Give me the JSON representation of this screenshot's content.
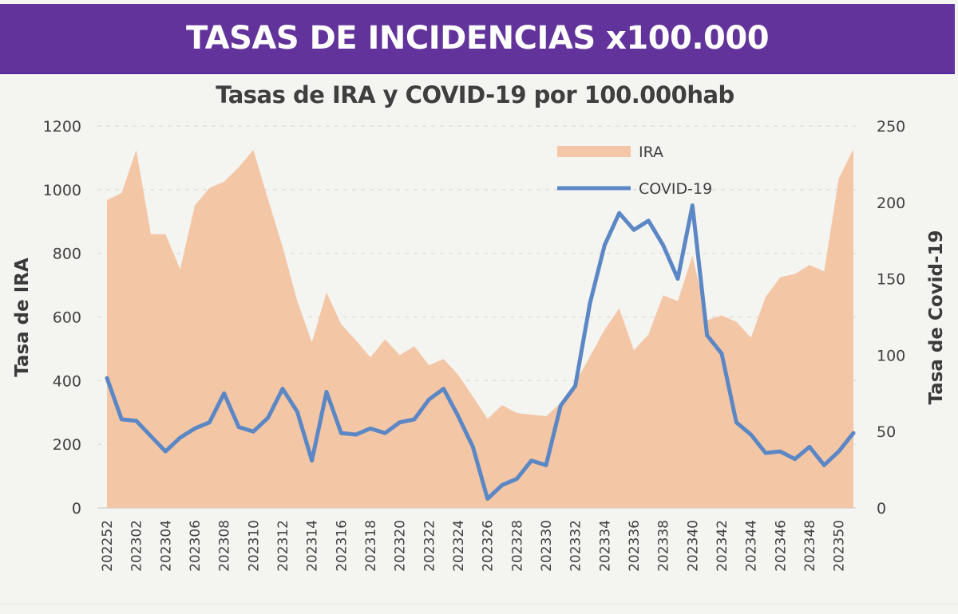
{
  "banner": {
    "title": "TASAS DE INCIDENCIAS x100.000"
  },
  "colors": {
    "banner": "#62339a",
    "ira_fill": "#f3c6a6",
    "covid_line": "#5b87c5",
    "text": "#404040",
    "grid": "#d9d9d9"
  },
  "chart_data": {
    "type": "area+line",
    "title": "Tasas de IRA y COVID-19 por 100.000hab",
    "xlabel": "",
    "ylabel_left": "Tasa de IRA",
    "ylabel_right": "Tasa de Covid-19",
    "ylim_left": [
      0,
      1200
    ],
    "ylim_right": [
      0,
      250
    ],
    "yticks_left": [
      0,
      200,
      400,
      600,
      800,
      1000,
      1200
    ],
    "yticks_right": [
      0,
      50,
      100,
      150,
      200,
      250
    ],
    "grid": true,
    "legend_position": "top-right-center",
    "x": [
      "202252",
      "202301",
      "202302",
      "202303",
      "202304",
      "202305",
      "202306",
      "202307",
      "202308",
      "202309",
      "202310",
      "202311",
      "202312",
      "202313",
      "202314",
      "202315",
      "202316",
      "202317",
      "202318",
      "202319",
      "202320",
      "202321",
      "202322",
      "202323",
      "202324",
      "202325",
      "202326",
      "202327",
      "202328",
      "202329",
      "202330",
      "202331",
      "202332",
      "202333",
      "202334",
      "202335",
      "202336",
      "202337",
      "202338",
      "202339",
      "202340",
      "202341",
      "202342",
      "202343",
      "202344",
      "202345",
      "202346",
      "202347",
      "202348",
      "202349",
      "202350",
      "202351"
    ],
    "xtick_labels": [
      "202252",
      "202302",
      "202304",
      "202306",
      "202308",
      "202310",
      "202312",
      "202314",
      "202316",
      "202318",
      "202320",
      "202322",
      "202324",
      "202326",
      "202328",
      "202330",
      "202332",
      "202334",
      "202336",
      "202338",
      "202340",
      "202342",
      "202344",
      "202346",
      "202348",
      "202350"
    ],
    "series": [
      {
        "name": "IRA",
        "type": "area",
        "axis": "left",
        "values": [
          967,
          990,
          1125,
          860,
          860,
          750,
          950,
          1005,
          1025,
          1070,
          1125,
          970,
          820,
          650,
          520,
          677,
          577,
          527,
          473,
          530,
          480,
          508,
          448,
          468,
          418,
          350,
          280,
          323,
          298,
          293,
          288,
          330,
          393,
          476,
          560,
          627,
          495,
          545,
          668,
          650,
          793,
          590,
          605,
          585,
          535,
          663,
          725,
          735,
          763,
          743,
          1035,
          1128
        ]
      },
      {
        "name": "COVID-19",
        "type": "line",
        "axis": "right",
        "values": [
          85,
          58,
          57,
          47,
          37,
          46,
          52,
          56,
          75,
          53,
          50,
          59,
          78,
          63,
          31,
          76,
          49,
          48,
          52,
          49,
          56,
          58,
          71,
          78,
          60,
          40,
          6,
          15,
          19,
          31,
          28,
          67,
          80,
          134,
          172,
          193,
          182,
          188,
          172,
          150,
          198,
          113,
          101,
          56,
          48,
          36,
          37,
          32,
          40,
          28,
          37,
          49
        ]
      }
    ]
  }
}
